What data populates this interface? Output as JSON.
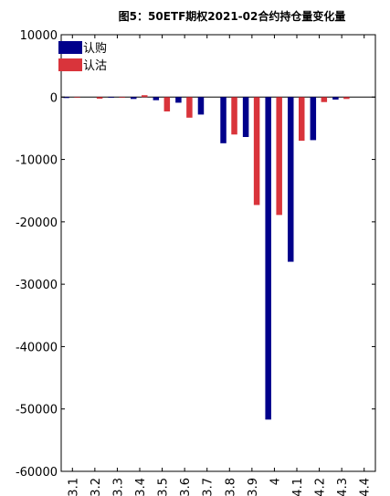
{
  "chart_data": {
    "type": "bar",
    "title": "图5：50ETF期权2021-02合约持仓量变化量",
    "categories": [
      "3.1",
      "3.2",
      "3.3",
      "3.4",
      "3.5",
      "3.6",
      "3.7",
      "3.8",
      "3.9",
      "4",
      "4.1",
      "4.2",
      "4.3",
      "4.4"
    ],
    "series": [
      {
        "name": "认购",
        "color": "#00008b",
        "values": [
          -150,
          0,
          -100,
          -300,
          -500,
          -900,
          -2800,
          -7400,
          -6400,
          -51700,
          -26400,
          -6900,
          -400,
          0
        ]
      },
      {
        "name": "认沽",
        "color": "#d9343b",
        "values": [
          -100,
          -250,
          -100,
          300,
          -2300,
          -3300,
          0,
          -6000,
          -17300,
          -18900,
          -7000,
          -800,
          -300,
          0
        ]
      }
    ],
    "ylim": [
      -60000,
      10000
    ],
    "yticks": [
      10000,
      0,
      -10000,
      -20000,
      -30000,
      -40000,
      -50000,
      -60000
    ],
    "legend_position": "top-left",
    "grid": false
  }
}
